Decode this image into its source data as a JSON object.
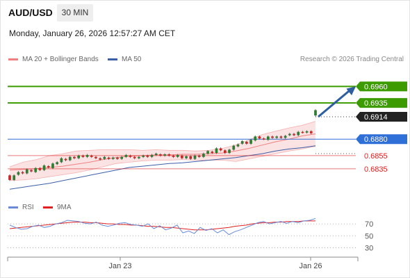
{
  "header": {
    "symbol": "AUD/USD",
    "timeframe": "30 MIN",
    "datetime": "Monday, January 26, 2026 12:57:27 AM CET"
  },
  "legend": {
    "bollinger": {
      "label": "MA 20 + Bollinger Bands",
      "color": "#f08080"
    },
    "ma50": {
      "label": "MA 50",
      "color": "#3a5ea8"
    },
    "credit": "Research © 2026 Trading Central"
  },
  "rsi_legend": {
    "rsi": {
      "label": "RSI",
      "color": "#6a8ad8"
    },
    "ma9": {
      "label": "9MA",
      "color": "#e02020"
    }
  },
  "chart_data": [
    {
      "type": "line",
      "title": "",
      "x_ticks": [
        "Jan 23",
        "Jan 26"
      ],
      "ylim": [
        0.68,
        0.699
      ],
      "levels": [
        {
          "value": 0.696,
          "label": "0.6960",
          "color": "#3c9b00",
          "style": "solid-box"
        },
        {
          "value": 0.6935,
          "label": "0.6935",
          "color": "#3c9b00",
          "style": "solid-box"
        },
        {
          "value": 0.6914,
          "label": "0.6914",
          "color": "#222222",
          "style": "dotted-box"
        },
        {
          "value": 0.688,
          "label": "0.6880",
          "color": "#2f6fd8",
          "style": "solid-box"
        },
        {
          "value": 0.6855,
          "label": "0.6855",
          "color": "#e02020",
          "style": "text"
        },
        {
          "value": 0.6835,
          "label": "0.6835",
          "color": "#e02020",
          "style": "text"
        }
      ],
      "candles": [
        [
          0.6825,
          0.6818
        ],
        [
          0.6818,
          0.6825
        ],
        [
          0.6826,
          0.683
        ],
        [
          0.683,
          0.6828
        ],
        [
          0.6828,
          0.6834
        ],
        [
          0.6833,
          0.6831
        ],
        [
          0.683,
          0.6836
        ],
        [
          0.6836,
          0.6833
        ],
        [
          0.6833,
          0.684
        ],
        [
          0.6839,
          0.6837
        ],
        [
          0.6836,
          0.6843
        ],
        [
          0.6842,
          0.6845
        ],
        [
          0.6845,
          0.6851
        ],
        [
          0.685,
          0.6848
        ],
        [
          0.6848,
          0.6853
        ],
        [
          0.6853,
          0.6851
        ],
        [
          0.6851,
          0.6855
        ],
        [
          0.6855,
          0.6853
        ],
        [
          0.6853,
          0.6856
        ],
        [
          0.6855,
          0.6853
        ],
        [
          0.6853,
          0.6851
        ],
        [
          0.6851,
          0.6849
        ],
        [
          0.685,
          0.6853
        ],
        [
          0.6852,
          0.685
        ],
        [
          0.685,
          0.6852
        ],
        [
          0.6852,
          0.685
        ],
        [
          0.685,
          0.6853
        ],
        [
          0.6853,
          0.6856
        ],
        [
          0.6855,
          0.6853
        ],
        [
          0.6853,
          0.6851
        ],
        [
          0.6851,
          0.6853
        ],
        [
          0.6853,
          0.6855
        ],
        [
          0.6855,
          0.6853
        ],
        [
          0.6853,
          0.6856
        ],
        [
          0.6856,
          0.6858
        ],
        [
          0.6857,
          0.6855
        ],
        [
          0.6855,
          0.6857
        ],
        [
          0.6857,
          0.6855
        ],
        [
          0.6855,
          0.6853
        ],
        [
          0.6853,
          0.6856
        ],
        [
          0.6855,
          0.6851
        ],
        [
          0.6851,
          0.6854
        ],
        [
          0.6854,
          0.685
        ],
        [
          0.685,
          0.6855
        ],
        [
          0.6855,
          0.6853
        ],
        [
          0.6853,
          0.6858
        ],
        [
          0.6858,
          0.6862
        ],
        [
          0.6861,
          0.6859
        ],
        [
          0.6859,
          0.6866
        ],
        [
          0.6866,
          0.6863
        ],
        [
          0.6863,
          0.6859
        ],
        [
          0.6859,
          0.6864
        ],
        [
          0.6864,
          0.687
        ],
        [
          0.6869,
          0.6872
        ],
        [
          0.6873,
          0.6877
        ],
        [
          0.6876,
          0.6873
        ],
        [
          0.6873,
          0.6879
        ],
        [
          0.6878,
          0.6884
        ],
        [
          0.6884,
          0.6881
        ],
        [
          0.6881,
          0.688
        ],
        [
          0.6879,
          0.6884
        ],
        [
          0.6884,
          0.6882
        ],
        [
          0.6882,
          0.6884
        ],
        [
          0.6884,
          0.6882
        ],
        [
          0.6882,
          0.6885
        ],
        [
          0.6886,
          0.6888
        ],
        [
          0.6888,
          0.6886
        ],
        [
          0.6886,
          0.6891
        ],
        [
          0.6891,
          0.689
        ],
        [
          0.689,
          0.6892
        ],
        [
          0.6892,
          0.6889
        ],
        [
          0.6916,
          0.6924
        ]
      ],
      "ma20": [
        0.6833,
        0.6834,
        0.6835,
        0.6837,
        0.6839,
        0.6842,
        0.6845,
        0.6849,
        0.6852,
        0.6854,
        0.6855,
        0.6856,
        0.6856,
        0.6857,
        0.6857,
        0.6858,
        0.6859,
        0.6862,
        0.6866,
        0.6871,
        0.6876,
        0.688,
        0.6885,
        0.6888
      ],
      "bb_upper": [
        0.6838,
        0.6845,
        0.6849,
        0.6855,
        0.6858,
        0.6862,
        0.6863,
        0.6864,
        0.6864,
        0.6864,
        0.6863,
        0.6864,
        0.6863,
        0.6863,
        0.6862,
        0.6863,
        0.6866,
        0.6871,
        0.6879,
        0.6887,
        0.6892,
        0.6897,
        0.6901,
        0.6907
      ],
      "bb_lower": [
        0.6817,
        0.6818,
        0.682,
        0.6823,
        0.6826,
        0.6829,
        0.6833,
        0.6838,
        0.6843,
        0.6845,
        0.6847,
        0.6848,
        0.6848,
        0.6849,
        0.6848,
        0.6848,
        0.6848,
        0.6846,
        0.685,
        0.6854,
        0.6858,
        0.6862,
        0.6865,
        0.6869
      ],
      "ma50": [
        0.6804,
        0.6807,
        0.681,
        0.6813,
        0.6817,
        0.6821,
        0.6825,
        0.6829,
        0.6833,
        0.6837,
        0.6839,
        0.6841,
        0.6843,
        0.6844,
        0.6846,
        0.6848,
        0.685,
        0.6852,
        0.6855,
        0.6858,
        0.6862,
        0.6865,
        0.6867,
        0.687
      ],
      "forecast_arrow": {
        "from": 0.6914,
        "to": 0.696
      }
    },
    {
      "type": "line",
      "title": "",
      "ylim": [
        20,
        90
      ],
      "y_ticks": [
        70,
        50,
        30
      ],
      "rsi": [
        68,
        64,
        61,
        62,
        66,
        68,
        64,
        66,
        70,
        72,
        76,
        75,
        74,
        71,
        70,
        73,
        68,
        66,
        68,
        71,
        72,
        69,
        68,
        66,
        70,
        62,
        67,
        60,
        63,
        68,
        55,
        58,
        54,
        64,
        59,
        62,
        55,
        60,
        52,
        57,
        60,
        64,
        68,
        72,
        74,
        70,
        72,
        74,
        71,
        74,
        72,
        75,
        76,
        79
      ],
      "ma9": [
        62,
        63,
        64,
        65,
        66,
        67,
        68,
        69,
        70,
        71,
        72,
        73,
        73,
        73,
        72,
        72,
        71,
        70,
        70,
        69,
        69,
        68,
        68,
        67,
        66,
        66,
        65,
        64,
        64,
        63,
        62,
        61,
        60,
        60,
        60,
        61,
        62,
        63,
        64,
        66,
        67,
        68,
        70,
        71,
        72,
        72,
        73,
        73,
        74,
        74,
        74,
        75,
        75,
        75
      ]
    }
  ]
}
